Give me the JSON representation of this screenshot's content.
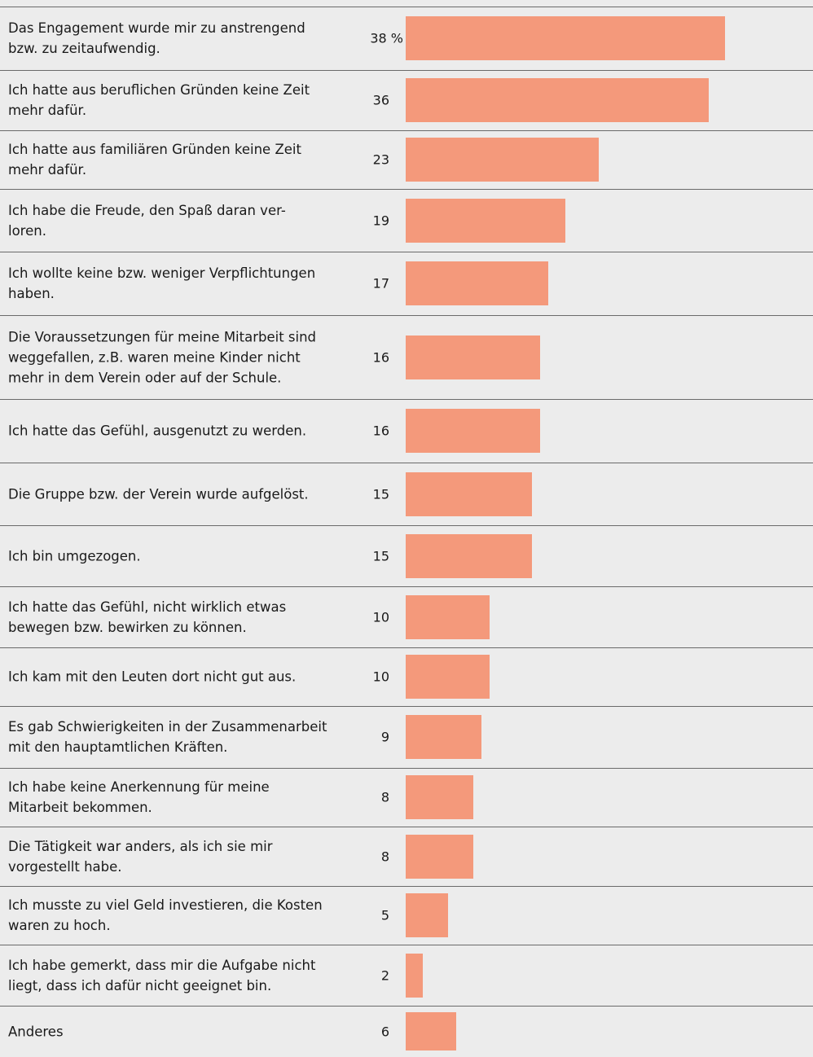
{
  "chart_data": {
    "type": "bar",
    "orientation": "horizontal",
    "color": "#f4997b",
    "categories": [
      "Das Engagement wurde mir zu anstrengend\nbzw. zu zeitaufwendig.",
      "Ich hatte aus beruflichen Gründen keine Zeit\nmehr dafür.",
      "Ich hatte aus familiären Gründen keine Zeit\nmehr dafür.",
      "Ich habe die Freude, den Spaß daran ver-\nloren.",
      "Ich wollte keine bzw. weniger Verpflichtungen\nhaben.",
      "Die Voraussetzungen für meine Mitarbeit sind\nweggefallen, z.B. waren meine Kinder nicht\nmehr in dem Verein oder auf der Schule.",
      "Ich hatte das Gefühl, ausgenutzt zu werden.",
      "Die Gruppe bzw. der Verein wurde aufgelöst.",
      "Ich bin umgezogen.",
      "Ich hatte das Gefühl, nicht wirklich etwas\nbewegen bzw. bewirken zu können.",
      "Ich kam mit den Leuten dort nicht gut aus.",
      "Es gab Schwierigkeiten in der Zusammenarbeit\nmit den hauptamtlichen Kräften.",
      "Ich habe keine Anerkennung für meine\nMitarbeit bekommen.",
      "Die Tätigkeit war anders, als ich sie mir\nvorgestellt habe.",
      "Ich musste zu viel Geld investieren, die Kosten\nwaren zu hoch.",
      "Ich habe gemerkt, dass mir die Aufgabe nicht\nliegt, dass ich dafür nicht geeignet bin.",
      "Anderes"
    ],
    "values": [
      38,
      36,
      23,
      19,
      17,
      16,
      16,
      15,
      15,
      10,
      10,
      9,
      8,
      8,
      5,
      2,
      6
    ],
    "value_labels": [
      "38 %",
      "36",
      "23",
      "19",
      "17",
      "16",
      "16",
      "15",
      "15",
      "10",
      "10",
      "9",
      "8",
      "8",
      "5",
      "2",
      "6"
    ]
  }
}
